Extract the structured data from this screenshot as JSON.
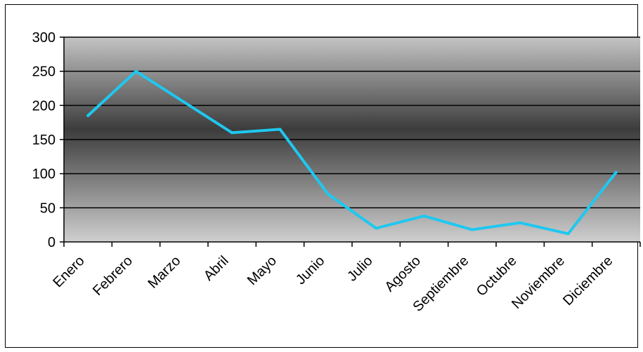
{
  "chart_data": {
    "type": "line",
    "title": "",
    "xlabel": "",
    "ylabel": "",
    "categories": [
      "Enero",
      "Febrero",
      "Marzo",
      "Abril",
      "Mayo",
      "Junio",
      "Julio",
      "Agosto",
      "Septiembre",
      "Octubre",
      "Noviembre",
      "Diciembre"
    ],
    "series": [
      {
        "values": [
          185,
          250,
          205,
          160,
          165,
          70,
          20,
          38,
          18,
          28,
          12,
          102
        ],
        "color": "#1ec8f0"
      }
    ],
    "ylim": [
      0,
      300
    ],
    "yticks": [
      "0",
      "50",
      "100",
      "150",
      "200",
      "250",
      "300"
    ],
    "grid": true,
    "legend": "none",
    "plot_background": "gradient gray"
  }
}
